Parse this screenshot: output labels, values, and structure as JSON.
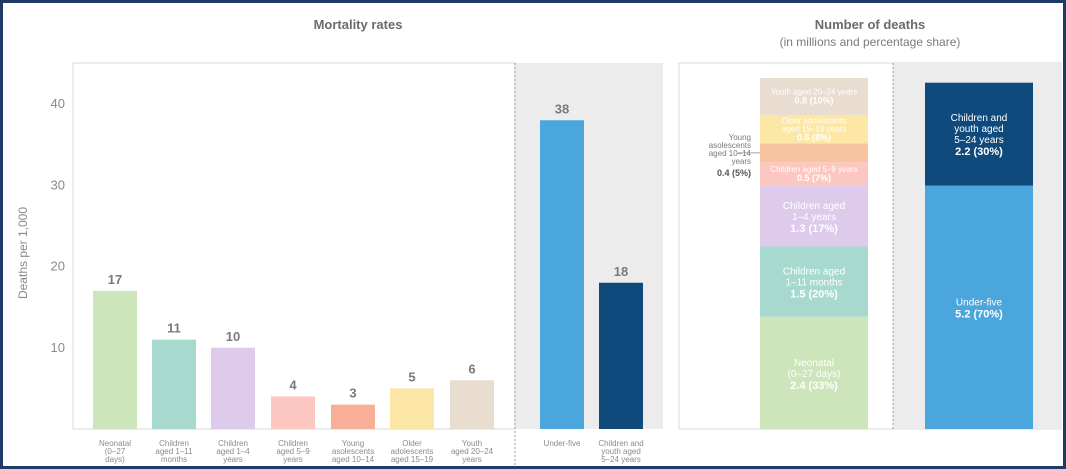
{
  "left_title": "Mortality rates",
  "right_title": "Number of deaths",
  "right_subtitle": "(in millions and percentage share)",
  "chart_data": [
    {
      "type": "bar",
      "title": "Mortality rates",
      "ylabel": "Deaths per 1,000",
      "ylim": [
        0,
        45
      ],
      "yticks": [
        10,
        20,
        30,
        40
      ],
      "categories": [
        [
          "Neonatal",
          "(0–27",
          "days)"
        ],
        [
          "Children",
          "aged 1–11",
          "months"
        ],
        [
          "Children",
          "aged 1–4",
          "years"
        ],
        [
          "Children",
          "aged 5–9",
          "years"
        ],
        [
          "Young",
          "asolescents",
          "aged 10–14"
        ],
        [
          "Older",
          "adolescents",
          "aged 15–19"
        ],
        [
          "Youth",
          "aged 20–24",
          "years"
        ],
        [
          "Under-five"
        ],
        [
          "Children and",
          "youth aged",
          "5–24 years"
        ]
      ],
      "values": [
        17,
        11,
        10,
        4,
        3,
        5,
        6,
        38,
        18
      ],
      "data_labels": [
        "17",
        "11",
        "10",
        "4",
        "3",
        "5",
        "6",
        "38",
        "18"
      ],
      "colors": [
        "#cce5bb",
        "#a7d9cf",
        "#decbeb",
        "#fbc7c0",
        "#f8af97",
        "#fce7a6",
        "#e9ddd0",
        "#4aa6dd",
        "#104a7c"
      ]
    },
    {
      "type": "bar",
      "stacked": true,
      "title": "Number of deaths",
      "subtitle": "(in millions and percentage share)",
      "stack_1": [
        {
          "label": [
            "Neonatal",
            "(0–27 days)"
          ],
          "value_label": "2.4 (33%)",
          "value": 2.4,
          "share": 33,
          "color": "#cce5bb"
        },
        {
          "label": [
            "Children aged",
            "1–11 months"
          ],
          "value_label": "1.5 (20%)",
          "value": 1.5,
          "share": 20,
          "color": "#a7d9cf"
        },
        {
          "label": [
            "Children aged",
            "1–4 years"
          ],
          "value_label": "1.3 (17%)",
          "value": 1.3,
          "share": 17,
          "color": "#decbeb"
        },
        {
          "label": [
            "Children aged 5–9 years"
          ],
          "value_label": "0.5 (7%)",
          "value": 0.5,
          "share": 7,
          "color": "#fbc7c0"
        },
        {
          "label": [
            "Young",
            "asolescents",
            "aged 10–14",
            "years"
          ],
          "value_label": "0.4 (5%)",
          "value": 0.4,
          "share": 5,
          "color": "#f8c49f",
          "callout": true
        },
        {
          "label": [
            "Older adolescents",
            "aged 15–19 years"
          ],
          "value_label": "0.6 (8%)",
          "value": 0.6,
          "share": 8,
          "color": "#fce7a6"
        },
        {
          "label": [
            "Youth aged 20–24 years"
          ],
          "value_label": "0.8 (10%)",
          "value": 0.8,
          "share": 10,
          "color": "#e9ddd0"
        }
      ],
      "stack_2": [
        {
          "label": [
            "Under-five"
          ],
          "value_label": "5.2 (70%)",
          "value": 5.2,
          "share": 70,
          "color": "#4aa6dd"
        },
        {
          "label": [
            "Children and",
            "youth aged",
            "5–24 years"
          ],
          "value_label": "2.2 (30%)",
          "value": 2.2,
          "share": 30,
          "color": "#104a7c"
        }
      ]
    }
  ]
}
